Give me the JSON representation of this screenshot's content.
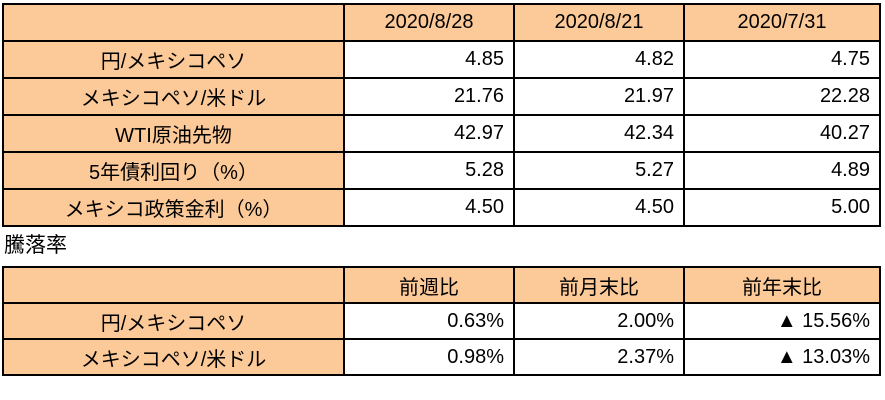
{
  "colors": {
    "cell_fill": "#FCC998",
    "border": "#000000",
    "text": "#000000",
    "background": "#FFFFFF"
  },
  "rates_table": {
    "columns": [
      "2020/8/28",
      "2020/8/21",
      "2020/7/31"
    ],
    "rows": [
      {
        "label": "円/メキシコペソ",
        "values": [
          "4.85",
          "4.82",
          "4.75"
        ]
      },
      {
        "label": "メキシコペソ/米ドル",
        "values": [
          "21.76",
          "21.97",
          "22.28"
        ]
      },
      {
        "label": "WTI原油先物",
        "values": [
          "42.97",
          "42.34",
          "40.27"
        ]
      },
      {
        "label": "5年債利回り（%）",
        "values": [
          "5.28",
          "5.27",
          "4.89"
        ]
      },
      {
        "label": "メキシコ政策金利（%）",
        "values": [
          "4.50",
          "4.50",
          "5.00"
        ]
      }
    ]
  },
  "section_label": "騰落率",
  "change_table": {
    "columns": [
      "前週比",
      "前月末比",
      "前年末比"
    ],
    "rows": [
      {
        "label": "円/メキシコペソ",
        "values": [
          "0.63%",
          "2.00%",
          "▲ 15.56%"
        ]
      },
      {
        "label": "メキシコペソ/米ドル",
        "values": [
          "0.98%",
          "2.37%",
          "▲ 13.03%"
        ]
      }
    ]
  }
}
